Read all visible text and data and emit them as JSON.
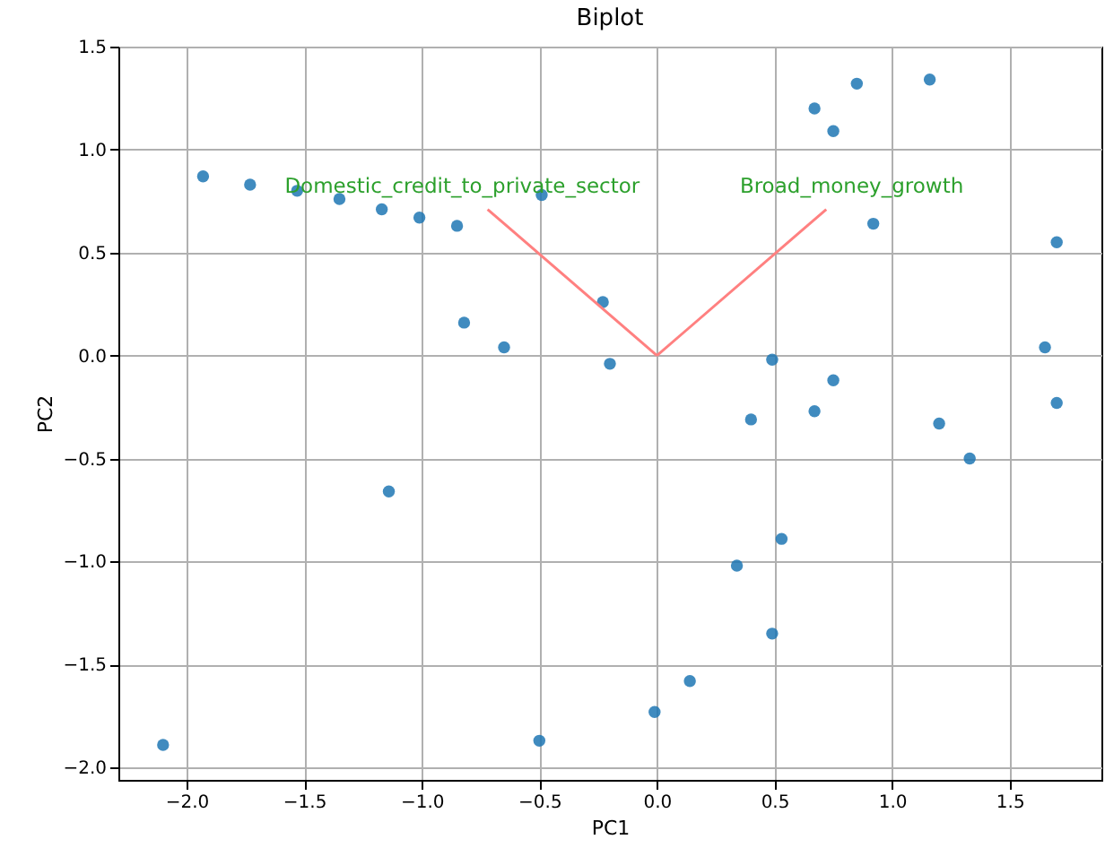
{
  "chart_data": {
    "type": "scatter",
    "title": "Biplot",
    "xlabel": "PC1",
    "ylabel": "PC2",
    "grid": true,
    "marker": "circle",
    "xlim": [
      -2.29,
      1.89
    ],
    "ylim": [
      -2.06,
      1.5
    ],
    "xticks": [
      {
        "value": -2,
        "label": "−2.0"
      },
      {
        "value": -1.5,
        "label": "−1.5"
      },
      {
        "value": -1,
        "label": "−1.0"
      },
      {
        "value": -0.5,
        "label": "−0.5"
      },
      {
        "value": 0,
        "label": "0.0"
      },
      {
        "value": 0.5,
        "label": "0.5"
      },
      {
        "value": 1,
        "label": "1.0"
      },
      {
        "value": 1.5,
        "label": "1.5"
      }
    ],
    "yticks": [
      {
        "value": -2,
        "label": "−2.0"
      },
      {
        "value": -1.5,
        "label": "−1.5"
      },
      {
        "value": -1,
        "label": "−1.0"
      },
      {
        "value": -0.5,
        "label": "−0.5"
      },
      {
        "value": 0,
        "label": "0.0"
      },
      {
        "value": 0.5,
        "label": "0.5"
      },
      {
        "value": 1,
        "label": "1.0"
      },
      {
        "value": 1.5,
        "label": "1.5"
      }
    ],
    "series": [
      {
        "color": "#1f77b4",
        "x": [
          -2.1,
          -1.93,
          -1.73,
          -1.53,
          -1.35,
          -1.17,
          -1.01,
          -0.85,
          -0.82,
          -0.65,
          -0.49,
          -0.23,
          -0.2,
          -1.14,
          -0.5,
          -0.01,
          0.14,
          0.34,
          0.49,
          0.53,
          0.4,
          0.49,
          0.67,
          0.75,
          0.67,
          0.75,
          0.85,
          1.16,
          0.92,
          1.2,
          1.33,
          1.65,
          1.7,
          1.7
        ],
        "values": [
          -1.89,
          0.87,
          0.83,
          0.8,
          0.76,
          0.71,
          0.67,
          0.63,
          0.16,
          0.04,
          0.78,
          0.26,
          -0.04,
          -0.66,
          -1.87,
          -1.73,
          -1.58,
          -1.02,
          -1.35,
          -0.89,
          -0.31,
          -0.02,
          -0.27,
          -0.12,
          1.2,
          1.09,
          1.32,
          1.34,
          0.64,
          -0.33,
          -0.5,
          0.04,
          -0.23,
          0.55
        ]
      },
      {
        "type": "line",
        "marker": "none",
        "color": "#ff8080",
        "x": [
          0,
          -0.72
        ],
        "values": [
          0,
          0.71
        ]
      },
      {
        "type": "line",
        "marker": "none",
        "color": "#ff8080",
        "x": [
          0,
          0.72
        ],
        "values": [
          0,
          0.71
        ]
      }
    ],
    "annotations": [
      "Domestic_credit_to_private_sector",
      "Broad_money_growth"
    ]
  }
}
